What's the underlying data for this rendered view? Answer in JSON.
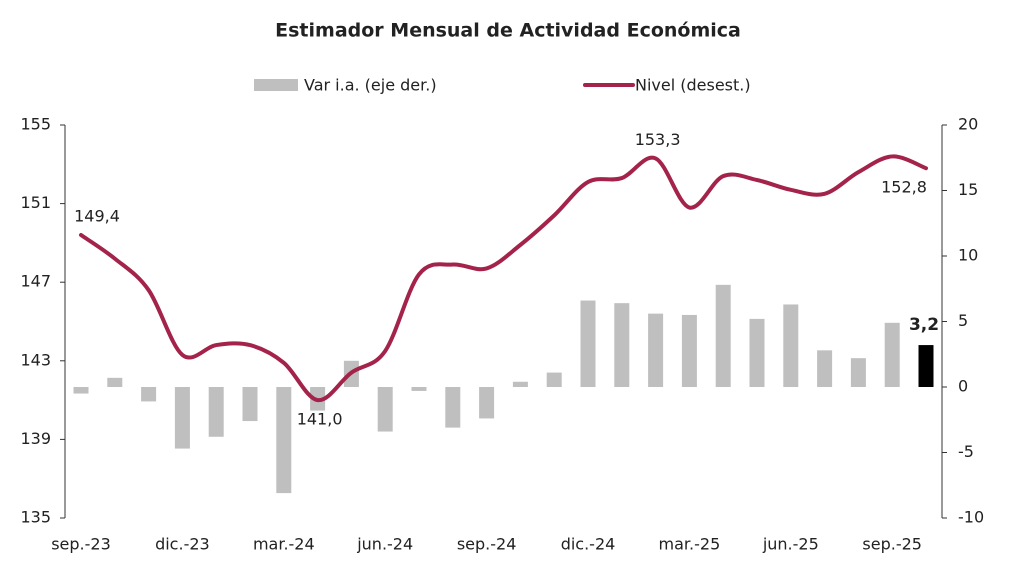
{
  "chart_data": {
    "type": "bar-line",
    "title": "Estimador Mensual de Actividad Económica",
    "categories": [
      "sep.-23",
      null,
      null,
      "dic.-23",
      null,
      null,
      "mar.-24",
      null,
      null,
      "jun.-24",
      null,
      null,
      "sep.-24",
      null,
      null,
      "dic.-24",
      null,
      null,
      "mar.-25",
      null,
      null,
      "jun.-25",
      null,
      null,
      "sep.-25",
      null
    ],
    "series": [
      {
        "name": "Var i.a. (eje der.)",
        "type": "bar",
        "axis": "y2",
        "color": "#bfbfbf",
        "colors": [
          "#bfbfbf",
          "#bfbfbf",
          "#bfbfbf",
          "#bfbfbf",
          "#bfbfbf",
          "#bfbfbf",
          "#bfbfbf",
          "#bfbfbf",
          "#bfbfbf",
          "#bfbfbf",
          "#bfbfbf",
          "#bfbfbf",
          "#bfbfbf",
          "#bfbfbf",
          "#bfbfbf",
          "#bfbfbf",
          "#bfbfbf",
          "#bfbfbf",
          "#bfbfbf",
          "#bfbfbf",
          "#bfbfbf",
          "#bfbfbf",
          "#bfbfbf",
          "#bfbfbf",
          "#bfbfbf",
          "#000000"
        ],
        "values": [
          -0.5,
          0.7,
          -1.1,
          -4.7,
          -3.8,
          -2.6,
          -8.1,
          -1.8,
          2.0,
          -3.4,
          -0.3,
          -3.1,
          -2.4,
          0.4,
          1.1,
          6.6,
          6.4,
          5.6,
          5.5,
          7.8,
          5.2,
          6.3,
          2.8,
          2.2,
          4.9,
          3.2
        ],
        "value_labels": [
          null,
          null,
          null,
          null,
          null,
          null,
          null,
          null,
          null,
          null,
          null,
          null,
          null,
          null,
          null,
          null,
          null,
          null,
          null,
          null,
          null,
          null,
          null,
          null,
          null,
          "3,2"
        ]
      },
      {
        "name": "Nivel (desest.)",
        "type": "line",
        "axis": "y",
        "color": "#a4234b",
        "values": [
          149.4,
          148.2,
          146.6,
          143.3,
          143.8,
          143.8,
          142.9,
          141.0,
          142.4,
          143.5,
          147.4,
          147.9,
          147.7,
          148.9,
          150.4,
          152.1,
          152.3,
          153.3,
          150.8,
          152.4,
          152.2,
          151.7,
          151.5,
          152.6,
          153.4,
          152.8
        ],
        "value_labels": [
          "149,4",
          null,
          null,
          null,
          null,
          null,
          null,
          "141,0",
          null,
          null,
          null,
          null,
          null,
          null,
          null,
          null,
          null,
          "153,3",
          null,
          null,
          null,
          null,
          null,
          null,
          null,
          "152,8"
        ]
      }
    ],
    "ylim": [
      135,
      155
    ],
    "yticks": [
      135,
      139,
      143,
      147,
      151,
      155
    ],
    "y2lim": [
      -10,
      20
    ],
    "y2ticks": [
      -10,
      -5,
      0,
      5,
      10,
      15,
      20
    ]
  }
}
